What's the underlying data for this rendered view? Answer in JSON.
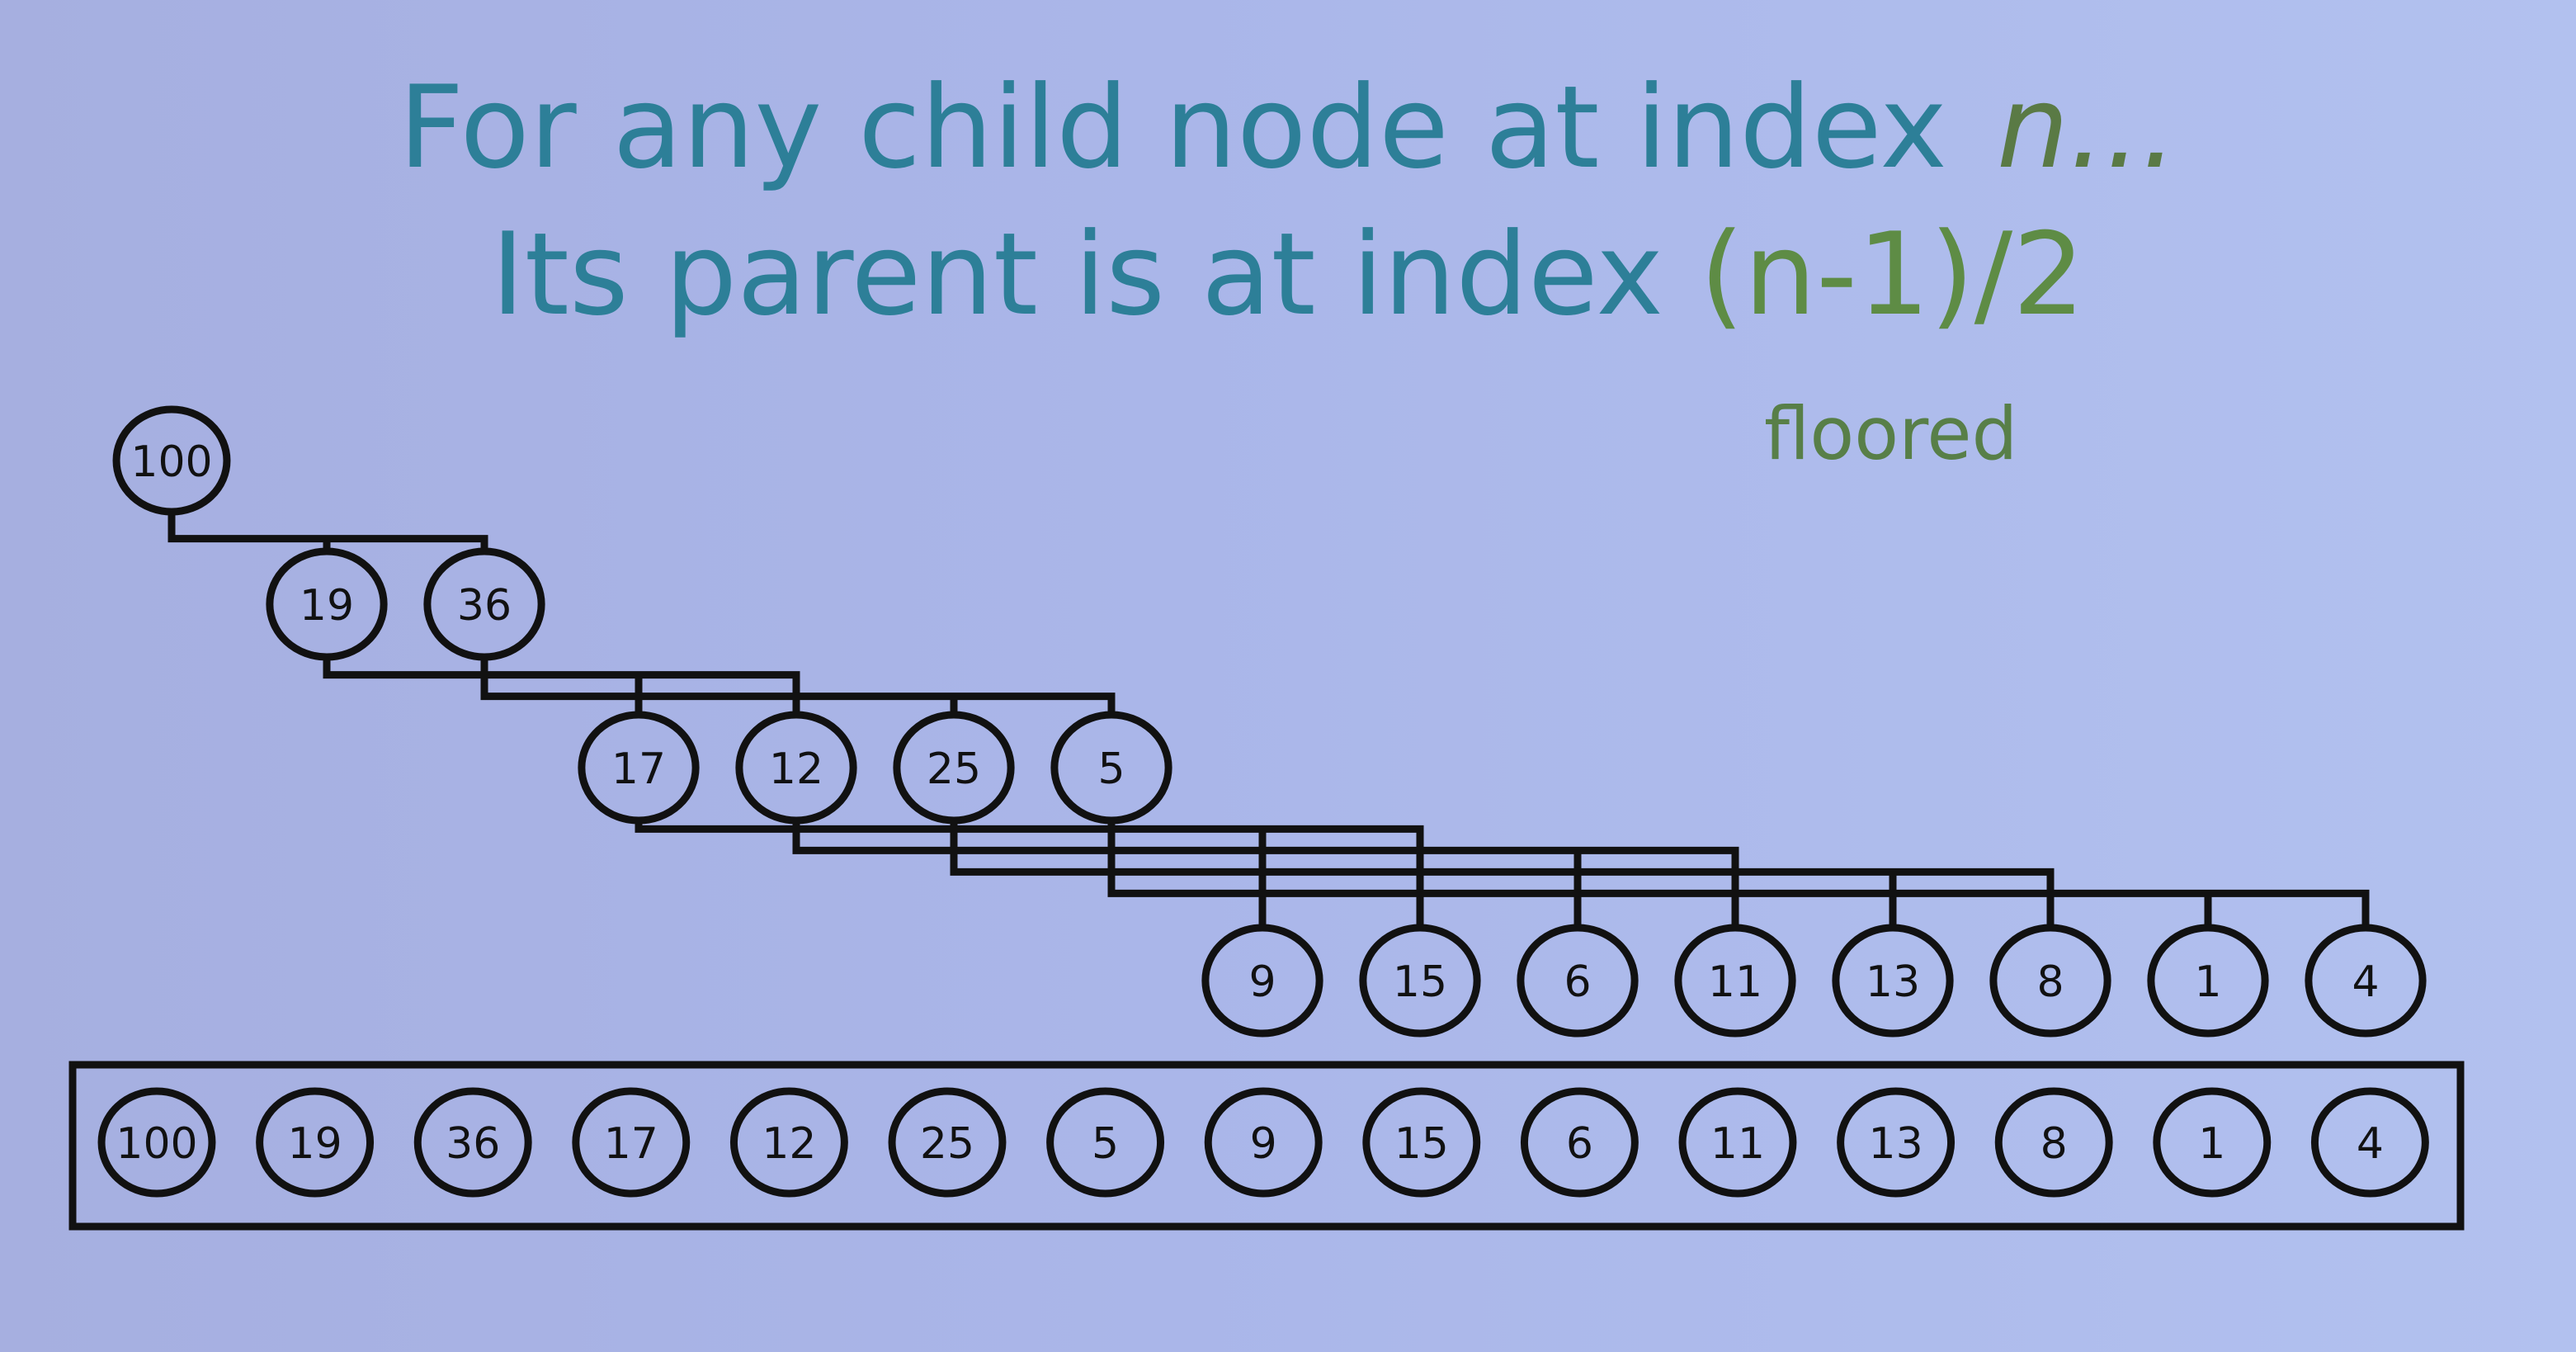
{
  "title": {
    "line1_text": "For any child node at index",
    "line1_var": "n...",
    "line2_text": "Its parent is at index",
    "line2_formula": "(n-1)/2"
  },
  "note": "floored",
  "tree": {
    "levels": [
      [
        "100"
      ],
      [
        "19",
        "36"
      ],
      [
        "17",
        "12",
        "25",
        "5"
      ],
      [
        "9",
        "15",
        "6",
        "11",
        "13",
        "8",
        "1",
        "4"
      ]
    ]
  },
  "array": [
    "100",
    "19",
    "36",
    "17",
    "12",
    "25",
    "5",
    "9",
    "15",
    "6",
    "11",
    "13",
    "8",
    "1",
    "4"
  ],
  "colors": {
    "background": "#aab6e9",
    "title": "#2d7f98",
    "formula": "#5e8c45",
    "lines": "#111111"
  }
}
